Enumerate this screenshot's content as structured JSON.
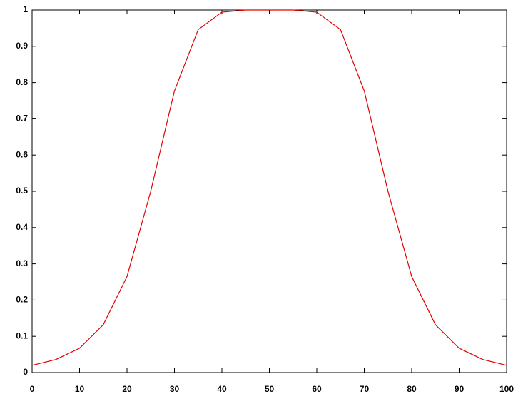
{
  "chart_data": {
    "type": "line",
    "x": [
      0,
      5,
      10,
      15,
      20,
      25,
      30,
      35,
      40,
      45,
      50,
      55,
      60,
      65,
      70,
      75,
      80,
      85,
      90,
      95,
      100
    ],
    "series": [
      {
        "color": "#e00000",
        "values": [
          0.02,
          0.036,
          0.067,
          0.132,
          0.265,
          0.5,
          0.777,
          0.946,
          0.994,
          1,
          1,
          1,
          0.994,
          0.946,
          0.777,
          0.5,
          0.265,
          0.132,
          0.067,
          0.036,
          0.02
        ]
      }
    ],
    "xlim": [
      0,
      100
    ],
    "xticks": [
      0,
      10,
      20,
      30,
      40,
      50,
      60,
      70,
      80,
      90,
      100
    ],
    "ylim": [
      0,
      1
    ],
    "yticks": [
      0,
      0.1,
      0.2,
      0.3,
      0.4,
      0.5,
      0.6,
      0.7,
      0.8,
      0.9,
      1
    ],
    "grid": false
  }
}
